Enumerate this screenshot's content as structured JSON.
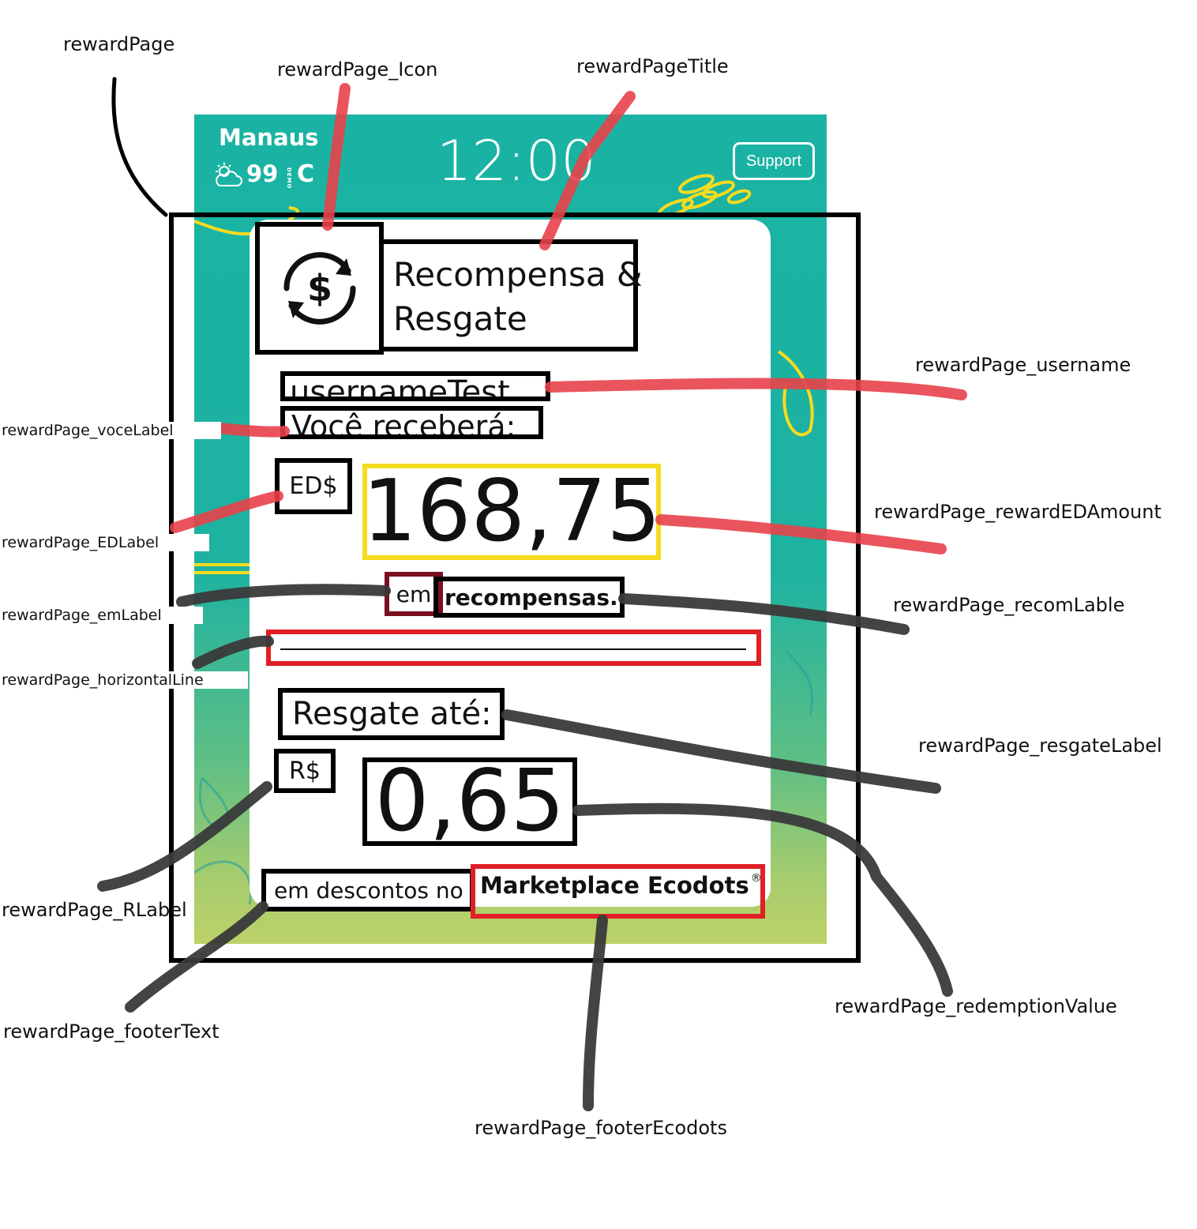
{
  "annotations": {
    "reward_page": "rewardPage",
    "reward_page_icon": "rewardPage_Icon",
    "reward_page_title": "rewardPageTitle",
    "reward_page_username": "rewardPage_username",
    "reward_page_voce_label": "rewardPage_voceLabel",
    "reward_page_ed_label": "rewardPage_EDLabel",
    "reward_page_reward_ed_amount": "rewardPage_rewardEDAmount",
    "reward_page_em_label": "rewardPage_emLabel",
    "reward_page_recom_lable": "rewardPage_recomLable",
    "reward_page_horizontal_line": "rewardPage_horizontalLine",
    "reward_page_resgate_label": "rewardPage_resgateLabel",
    "reward_page_r_label": "rewardPage_RLabel",
    "reward_page_redemption_value": "rewardPage_redemptionValue",
    "reward_page_footer_text": "rewardPage_footerText",
    "reward_page_footer_ecodots": "rewardPage_footerEcodots"
  },
  "header": {
    "city": "Manaus",
    "temperature": "99",
    "demo_tag": "DEMO",
    "temp_unit": "C",
    "clock": "12:00",
    "support_label": "Support"
  },
  "reward": {
    "title_line1": "Recompensa &",
    "title_line2": "Resgate",
    "username": "usernameTest",
    "voce_label": "Você receberá:",
    "ed_label": "ED$",
    "ed_amount": "168,75",
    "em_label": "em",
    "recompensas_label": "recompensas.",
    "resgate_label": "Resgate até:",
    "r_label": "R$",
    "redemption_value": "0,65",
    "footer_text": "em descontos no",
    "footer_brand": "Marketplace Ecodots",
    "footer_brand_mark": "®"
  },
  "colors": {
    "teal": "#1ab3a3",
    "green": "#bcd268",
    "accent_yellow": "#f5dc1e",
    "highlight_red": "#e01f26",
    "dark_red": "#7a1020",
    "pointer_red": "#e8414a",
    "pointer_dark": "#3a3a3a"
  }
}
